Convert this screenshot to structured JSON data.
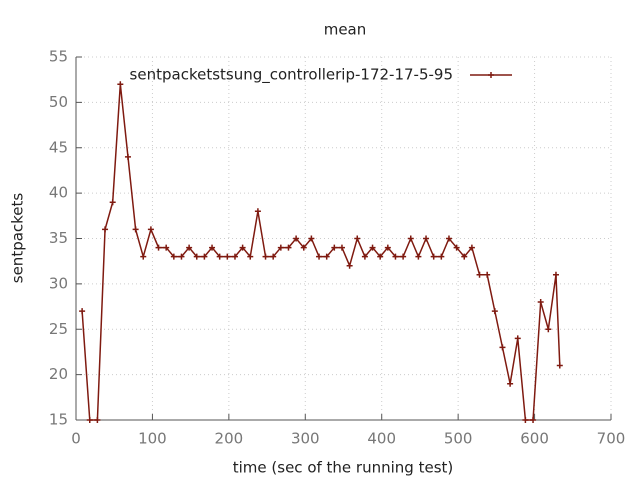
{
  "chart_data": {
    "type": "line",
    "title": "mean",
    "x_label": "time (sec of the running test)",
    "y_label": "sentpackets",
    "x": [
      8,
      18,
      28,
      38,
      48,
      58,
      68,
      78,
      88,
      98,
      108,
      118,
      128,
      138,
      148,
      158,
      168,
      178,
      188,
      198,
      208,
      218,
      228,
      238,
      248,
      258,
      268,
      278,
      288,
      298,
      308,
      318,
      328,
      338,
      348,
      358,
      368,
      378,
      388,
      398,
      408,
      418,
      428,
      438,
      448,
      458,
      468,
      478,
      488,
      498,
      508,
      518,
      528,
      538,
      548,
      558,
      568,
      578,
      588,
      598,
      608,
      618,
      628,
      633
    ],
    "series": [
      {
        "name": "sentpacketstsung_controllerip-172-17-5-95",
        "color": "#7f1a10",
        "values": [
          27,
          15,
          15,
          36,
          39,
          52,
          44,
          36,
          33,
          36,
          34,
          34,
          33,
          33,
          34,
          33,
          33,
          34,
          33,
          33,
          33,
          34,
          33,
          38,
          33,
          33,
          34,
          34,
          35,
          34,
          35,
          33,
          33,
          34,
          34,
          32,
          35,
          33,
          34,
          33,
          34,
          33,
          33,
          35,
          33,
          35,
          33,
          33,
          35,
          34,
          33,
          34,
          31,
          31,
          27,
          23,
          19,
          24,
          15,
          15,
          28,
          25,
          31,
          21
        ]
      }
    ],
    "xlim": [
      0,
      700
    ],
    "xticks": [
      0,
      100,
      200,
      300,
      400,
      500,
      600,
      700
    ],
    "ylim": [
      15,
      55
    ],
    "yticks": [
      15,
      20,
      25,
      30,
      35,
      40,
      45,
      50,
      55
    ],
    "grid": true,
    "legend": "top-right"
  }
}
